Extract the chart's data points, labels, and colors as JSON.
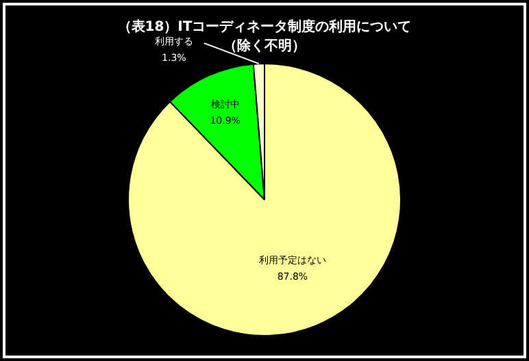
{
  "chart_data": {
    "type": "pie",
    "title": "（表18）ITコーディネータ制度の利用について",
    "subtitle": "（除く不明）",
    "categories": [
      "利用予定はない",
      "検討中",
      "利用する"
    ],
    "values": [
      87.8,
      10.9,
      1.3
    ],
    "colors": [
      "#ffff99",
      "#00ff00",
      "#ffffcc"
    ],
    "value_labels": [
      "87.8%",
      "10.9%",
      "1.3%"
    ],
    "legend": false
  }
}
